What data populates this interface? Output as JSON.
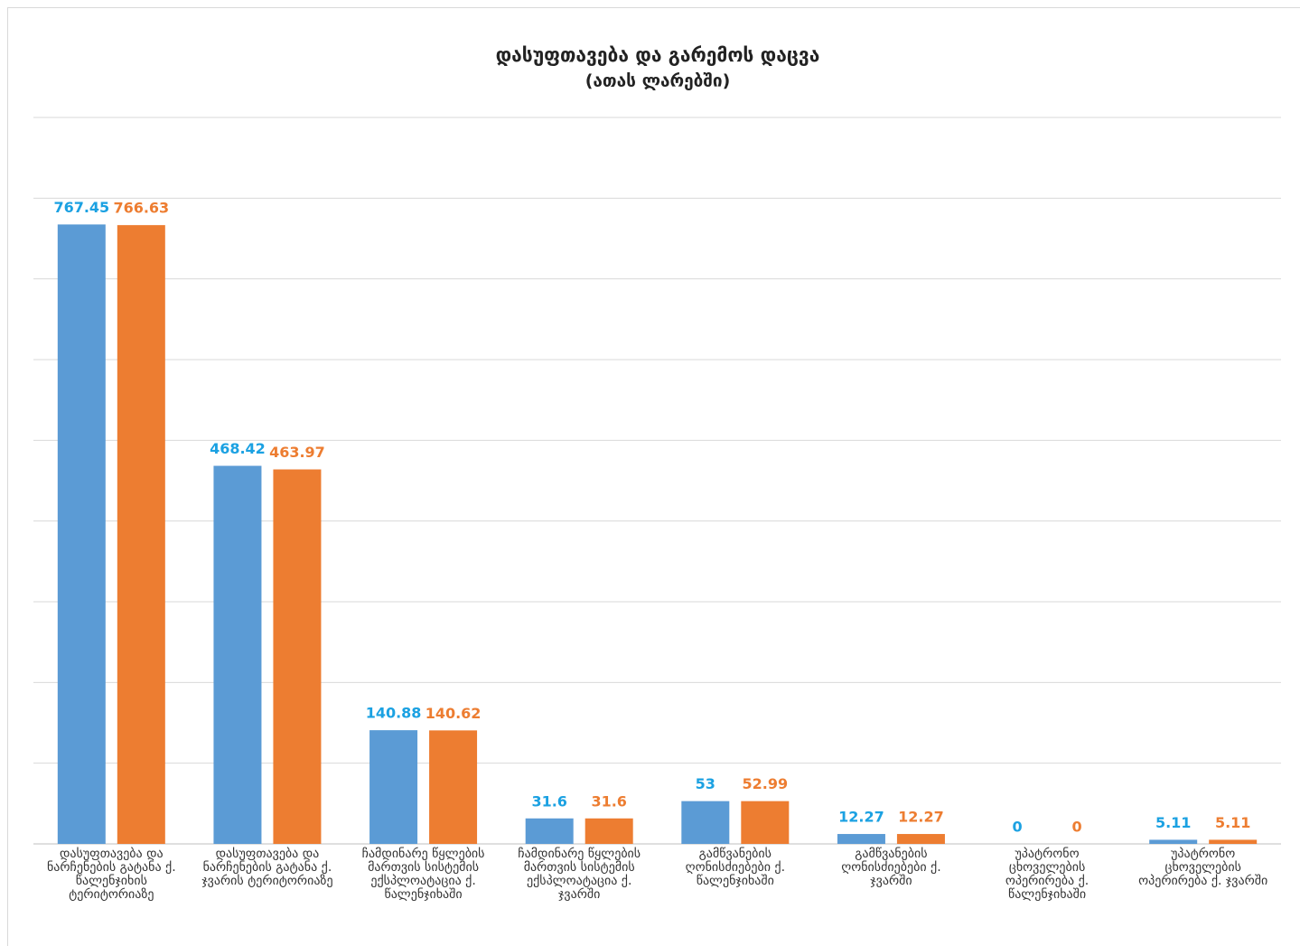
{
  "chart_data": {
    "type": "bar",
    "title": "დასუფთავება და გარემოს დაცვა",
    "subtitle": "(ათას ლარებში)",
    "categories": [
      "დასუფთავება და ნარჩენების გატანა ქ. წალენჯიხის ტერიტორიაზე",
      "დასუფთავება და ნარჩენების გატანა ქ. ჯვარის ტერიტორიაზე",
      "ჩამდინარე წყლების მართვის სისტემის ექსპლოატაცია ქ. წალენჯიხაში",
      "ჩამდინარე წყლების მართვის სისტემის ექსპლოატაცია ქ. ჯვარში",
      "გამწვანების ღონისძიებები ქ. წალენჯიხაში",
      "გამწვანების ღონისძიებები ქ. ჯვარში",
      "უპატრონო ცხოველების ოპერირება ქ. წალენჯიხაში",
      "უპატრონო ცხოველების ოპერირება ქ. ჯვარში"
    ],
    "series": [
      {
        "color": "#5b9bd5",
        "label_color": "#1ba1e2",
        "values": [
          767.45,
          468.42,
          140.88,
          31.6,
          53,
          12.27,
          0,
          5.11
        ]
      },
      {
        "color": "#ed7d31",
        "label_color": "#ed7d31",
        "values": [
          766.63,
          463.97,
          140.62,
          31.6,
          52.99,
          12.27,
          0,
          5.11
        ]
      }
    ],
    "ylim": [
      0,
      900
    ],
    "yticks": [
      0,
      100,
      200,
      300,
      400,
      500,
      600,
      700,
      800,
      900
    ],
    "grid": true
  }
}
